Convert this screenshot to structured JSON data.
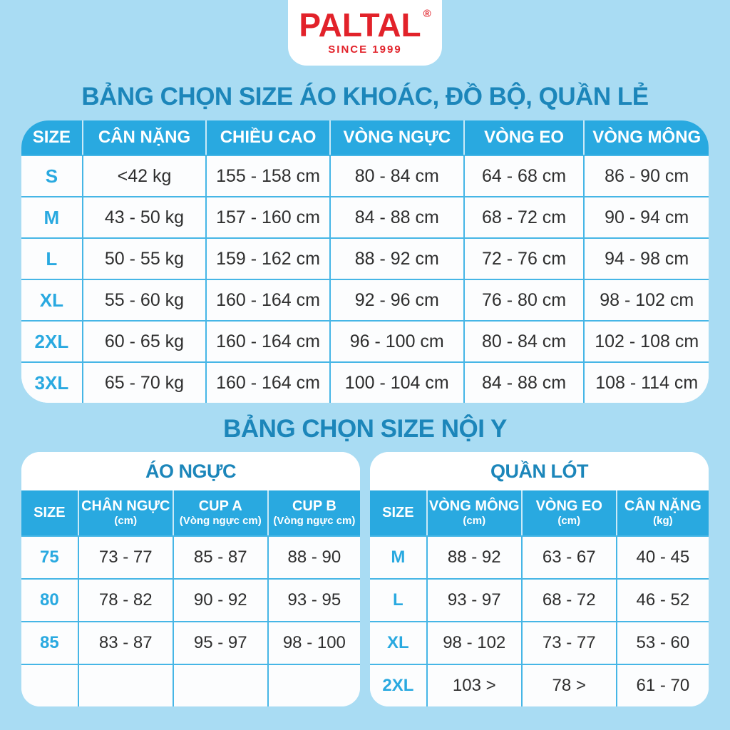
{
  "colors": {
    "background": "#A9DCF3",
    "header_blue": "#29A9E0",
    "title_teal": "#1C86BA",
    "logo_red": "#E2222A",
    "border_cyan": "#46B6E6",
    "text_dark": "#2E2E2E"
  },
  "logo": {
    "brand": "PALTAL",
    "registered": "®",
    "tagline": "SINCE 1999"
  },
  "section_outerwear": {
    "title": "BẢNG CHỌN SIZE ÁO KHOÁC, ĐỒ BỘ, QUẦN LẺ",
    "table": {
      "headers": [
        "SIZE",
        "CÂN NẶNG",
        "CHIỀU CAO",
        "VÒNG NGỰC",
        "VÒNG EO",
        "VÒNG MÔNG"
      ],
      "rows": [
        [
          "S",
          "<42 kg",
          "155 - 158 cm",
          "80 - 84 cm",
          "64 - 68 cm",
          "86 - 90 cm"
        ],
        [
          "M",
          "43 - 50 kg",
          "157 - 160 cm",
          "84 - 88 cm",
          "68 - 72 cm",
          "90 - 94 cm"
        ],
        [
          "L",
          "50 - 55 kg",
          "159 - 162 cm",
          "88 - 92 cm",
          "72 - 76 cm",
          "94 - 98 cm"
        ],
        [
          "XL",
          "55 - 60 kg",
          "160 - 164 cm",
          "92 - 96 cm",
          "76 - 80 cm",
          "98 - 102 cm"
        ],
        [
          "2XL",
          "60 - 65 kg",
          "160 - 164 cm",
          "96 - 100 cm",
          "80 - 84 cm",
          "102 - 108 cm"
        ],
        [
          "3XL",
          "65 - 70 kg",
          "160 - 164 cm",
          "100 - 104 cm",
          "84 - 88 cm",
          "108 - 114 cm"
        ]
      ]
    }
  },
  "section_underwear": {
    "title": "BẢNG CHỌN SIZE NỘI Y",
    "bra_table": {
      "title": "ÁO NGỰC",
      "headers": [
        {
          "main": "SIZE",
          "sub": ""
        },
        {
          "main": "CHÂN NGỰC",
          "sub": "(cm)"
        },
        {
          "main": "CUP A",
          "sub": "(Vòng ngực cm)"
        },
        {
          "main": "CUP B",
          "sub": "(Vòng ngực cm)"
        }
      ],
      "rows": [
        [
          "75",
          "73 - 77",
          "85 - 87",
          "88 - 90"
        ],
        [
          "80",
          "78 - 82",
          "90 - 92",
          "93 - 95"
        ],
        [
          "85",
          "83 - 87",
          "95 - 97",
          "98 - 100"
        ],
        [
          "",
          "",
          "",
          ""
        ]
      ]
    },
    "panty_table": {
      "title": "QUẦN LÓT",
      "headers": [
        {
          "main": "SIZE",
          "sub": ""
        },
        {
          "main": "VÒNG MÔNG",
          "sub": "(cm)"
        },
        {
          "main": "VÒNG EO",
          "sub": "(cm)"
        },
        {
          "main": "CÂN NẶNG",
          "sub": "(kg)"
        }
      ],
      "rows": [
        [
          "M",
          "88 - 92",
          "63 - 67",
          "40 - 45"
        ],
        [
          "L",
          "93 - 97",
          "68 - 72",
          "46 - 52"
        ],
        [
          "XL",
          "98 - 102",
          "73 - 77",
          "53 - 60"
        ],
        [
          "2XL",
          "103 >",
          "78 >",
          "61 - 70"
        ]
      ]
    }
  }
}
